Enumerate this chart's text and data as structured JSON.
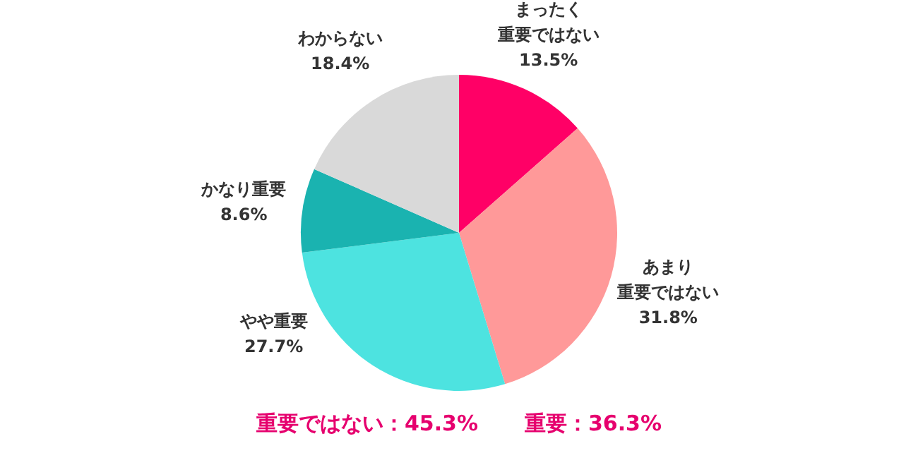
{
  "chart_data": {
    "type": "pie",
    "categories": [
      "まったく重要ではない",
      "あまり重要ではない",
      "やや重要",
      "かなり重要",
      "わからない"
    ],
    "values": [
      13.5,
      31.8,
      27.7,
      8.6,
      18.4
    ],
    "value_labels": [
      "13.5%",
      "31.8%",
      "27.7%",
      "8.6%",
      "18.4%"
    ],
    "colors": [
      "#ff0066",
      "#ff9999",
      "#4de3e0",
      "#1ab3b0",
      "#d9d9d9"
    ],
    "annotations": [
      "重要ではない：45.3%",
      "重要：36.3%"
    ]
  }
}
